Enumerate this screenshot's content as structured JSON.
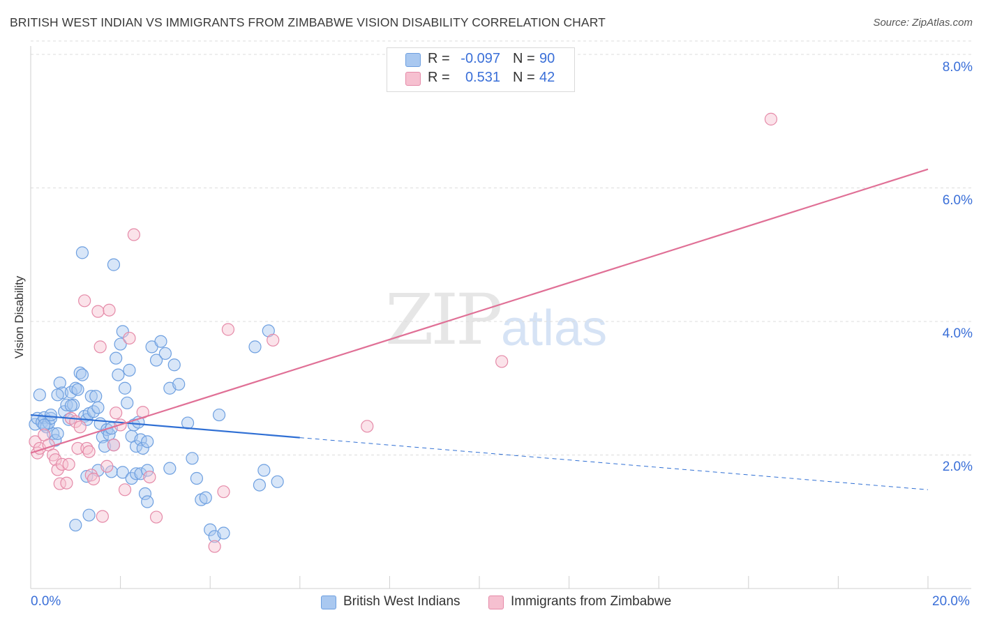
{
  "title": "BRITISH WEST INDIAN VS IMMIGRANTS FROM ZIMBABWE VISION DISABILITY CORRELATION CHART",
  "source": "Source: ZipAtlas.com",
  "watermark": {
    "zip": "ZIP",
    "atlas": "atlas"
  },
  "legend_top": {
    "rows": [
      {
        "r_label": "R =",
        "r_value": "-0.097",
        "n_label": "N =",
        "n_value": "90",
        "color": "#a9c8f0",
        "border": "#6d9fe0"
      },
      {
        "r_label": "R =",
        "r_value": "0.531",
        "n_label": "N =",
        "n_value": "42",
        "color": "#f6c0d0",
        "border": "#e58aa8"
      }
    ]
  },
  "legend_bottom": [
    {
      "label": "British West Indians",
      "color": "#a9c8f0",
      "border": "#6d9fe0"
    },
    {
      "label": "Immigrants from Zimbabwe",
      "color": "#f6c0d0",
      "border": "#e58aa8"
    }
  ],
  "chart_data": {
    "type": "scatter",
    "title": "BRITISH WEST INDIAN VS IMMIGRANTS FROM ZIMBABWE VISION DISABILITY CORRELATION CHART",
    "xlabel": "",
    "ylabel": "Vision Disability",
    "xlim": [
      0,
      20
    ],
    "ylim": [
      0,
      8
    ],
    "x_tick_labels": [
      "0.0%",
      "20.0%"
    ],
    "y_ticks": [
      2,
      4,
      6,
      8
    ],
    "y_tick_labels": [
      "2.0%",
      "4.0%",
      "6.0%",
      "8.0%"
    ],
    "grid": true,
    "legend_position": "top-center",
    "series": [
      {
        "name": "British West Indians",
        "color": "#6d9fe0",
        "fill": "#a9c8f0",
        "trend": {
          "x": [
            0,
            6
          ],
          "y": [
            2.6,
            2.26
          ],
          "dashed_to": [
            20,
            1.48
          ]
        },
        "points": [
          [
            0.1,
            2.46
          ],
          [
            0.15,
            2.55
          ],
          [
            0.2,
            2.9
          ],
          [
            0.25,
            2.49
          ],
          [
            0.3,
            2.56
          ],
          [
            0.35,
            2.42
          ],
          [
            0.4,
            2.48
          ],
          [
            0.45,
            2.55
          ],
          [
            0.5,
            2.32
          ],
          [
            0.55,
            2.22
          ],
          [
            0.6,
            2.32
          ],
          [
            0.65,
            3.08
          ],
          [
            0.7,
            2.93
          ],
          [
            0.75,
            2.65
          ],
          [
            0.8,
            2.75
          ],
          [
            0.85,
            2.53
          ],
          [
            0.9,
            2.94
          ],
          [
            0.95,
            2.75
          ],
          [
            1.0,
            3.0
          ],
          [
            1.05,
            2.98
          ],
          [
            1.1,
            3.23
          ],
          [
            1.15,
            3.2
          ],
          [
            1.2,
            2.58
          ],
          [
            1.25,
            2.53
          ],
          [
            1.3,
            2.62
          ],
          [
            1.35,
            2.88
          ],
          [
            1.4,
            2.65
          ],
          [
            1.45,
            2.88
          ],
          [
            1.5,
            2.71
          ],
          [
            1.55,
            2.47
          ],
          [
            1.6,
            2.27
          ],
          [
            1.65,
            2.13
          ],
          [
            1.7,
            2.38
          ],
          [
            1.75,
            2.31
          ],
          [
            1.8,
            2.4
          ],
          [
            1.85,
            2.15
          ],
          [
            1.9,
            3.45
          ],
          [
            1.95,
            3.2
          ],
          [
            2.0,
            3.66
          ],
          [
            2.05,
            3.85
          ],
          [
            2.1,
            3.0
          ],
          [
            2.15,
            2.78
          ],
          [
            2.2,
            3.27
          ],
          [
            2.25,
            2.28
          ],
          [
            2.3,
            2.45
          ],
          [
            2.35,
            2.13
          ],
          [
            2.4,
            2.49
          ],
          [
            2.45,
            2.23
          ],
          [
            2.5,
            2.1
          ],
          [
            2.55,
            1.42
          ],
          [
            2.6,
            2.2
          ],
          [
            2.7,
            3.62
          ],
          [
            2.8,
            3.42
          ],
          [
            2.9,
            3.7
          ],
          [
            3.0,
            3.52
          ],
          [
            3.1,
            3.0
          ],
          [
            3.2,
            3.35
          ],
          [
            3.3,
            3.06
          ],
          [
            3.5,
            2.48
          ],
          [
            3.6,
            1.95
          ],
          [
            3.7,
            1.65
          ],
          [
            3.8,
            1.33
          ],
          [
            3.9,
            1.36
          ],
          [
            4.0,
            0.88
          ],
          [
            4.1,
            0.78
          ],
          [
            4.2,
            2.6
          ],
          [
            4.3,
            0.83
          ],
          [
            5.0,
            3.62
          ],
          [
            5.1,
            1.55
          ],
          [
            5.2,
            1.77
          ],
          [
            5.3,
            3.86
          ],
          [
            5.5,
            1.6
          ],
          [
            1.15,
            5.03
          ],
          [
            1.85,
            4.85
          ],
          [
            0.3,
            2.45
          ],
          [
            0.45,
            2.6
          ],
          [
            0.6,
            2.9
          ],
          [
            0.9,
            2.74
          ],
          [
            1.25,
            1.68
          ],
          [
            1.5,
            1.77
          ],
          [
            1.8,
            1.75
          ],
          [
            2.05,
            1.74
          ],
          [
            2.25,
            1.65
          ],
          [
            2.35,
            1.72
          ],
          [
            2.45,
            1.72
          ],
          [
            2.6,
            1.77
          ],
          [
            3.1,
            1.8
          ],
          [
            1.3,
            1.1
          ],
          [
            1.0,
            0.95
          ],
          [
            2.6,
            1.3
          ]
        ]
      },
      {
        "name": "Immigrants from Zimbabwe",
        "color": "#e58aa8",
        "fill": "#f6c0d0",
        "trend": {
          "x": [
            0,
            20
          ],
          "y": [
            2.03,
            6.28
          ]
        },
        "points": [
          [
            0.1,
            2.2
          ],
          [
            0.15,
            2.03
          ],
          [
            0.2,
            2.1
          ],
          [
            0.3,
            2.3
          ],
          [
            0.4,
            2.15
          ],
          [
            0.5,
            2.0
          ],
          [
            0.55,
            1.93
          ],
          [
            0.6,
            1.78
          ],
          [
            0.65,
            1.57
          ],
          [
            0.7,
            1.86
          ],
          [
            0.8,
            1.58
          ],
          [
            0.85,
            1.86
          ],
          [
            0.9,
            2.55
          ],
          [
            1.0,
            2.5
          ],
          [
            1.05,
            2.1
          ],
          [
            1.1,
            2.42
          ],
          [
            1.2,
            4.31
          ],
          [
            1.25,
            2.1
          ],
          [
            1.3,
            2.05
          ],
          [
            1.35,
            1.7
          ],
          [
            1.4,
            1.64
          ],
          [
            1.5,
            4.15
          ],
          [
            1.55,
            3.62
          ],
          [
            1.6,
            1.08
          ],
          [
            1.7,
            1.83
          ],
          [
            1.75,
            4.17
          ],
          [
            1.85,
            2.15
          ],
          [
            1.9,
            2.63
          ],
          [
            2.0,
            2.45
          ],
          [
            2.1,
            1.48
          ],
          [
            2.2,
            3.75
          ],
          [
            2.3,
            5.3
          ],
          [
            2.5,
            2.64
          ],
          [
            2.65,
            1.67
          ],
          [
            2.8,
            1.07
          ],
          [
            4.1,
            0.63
          ],
          [
            4.3,
            1.45
          ],
          [
            4.4,
            3.88
          ],
          [
            5.4,
            3.72
          ],
          [
            7.5,
            2.43
          ],
          [
            10.5,
            3.4
          ],
          [
            16.5,
            7.03
          ]
        ]
      }
    ]
  }
}
